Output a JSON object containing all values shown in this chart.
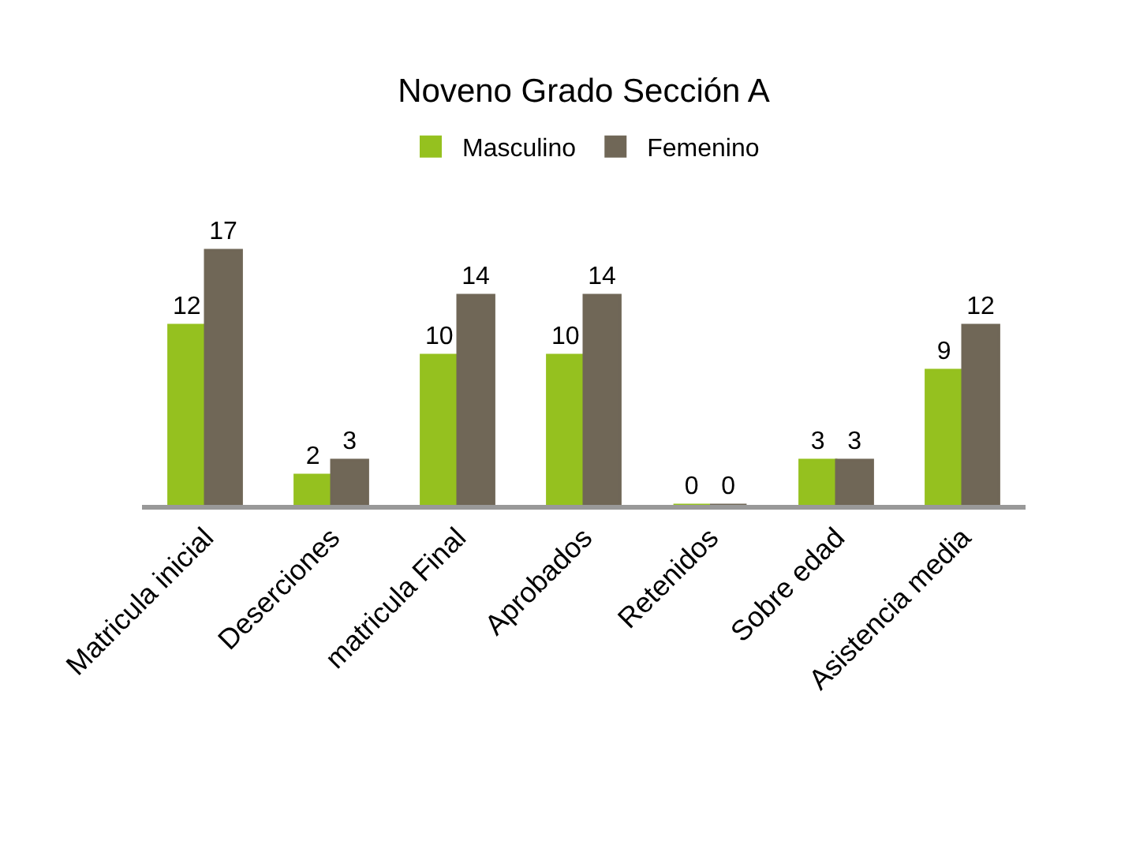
{
  "chart_data": {
    "type": "bar",
    "title": "Noveno Grado Sección A",
    "categories": [
      "Matricula inicial",
      "Deserciones",
      "matricula Final",
      "Aprobados",
      "Retenidos",
      "Sobre edad",
      "Asistencia media"
    ],
    "series": [
      {
        "name": "Masculino",
        "color": "#95c11f",
        "values": [
          12,
          2,
          10,
          10,
          0,
          3,
          9
        ]
      },
      {
        "name": "Femenino",
        "color": "#706757",
        "values": [
          17,
          3,
          14,
          14,
          0,
          3,
          12
        ]
      }
    ],
    "data_labels": true,
    "legend": "top"
  }
}
